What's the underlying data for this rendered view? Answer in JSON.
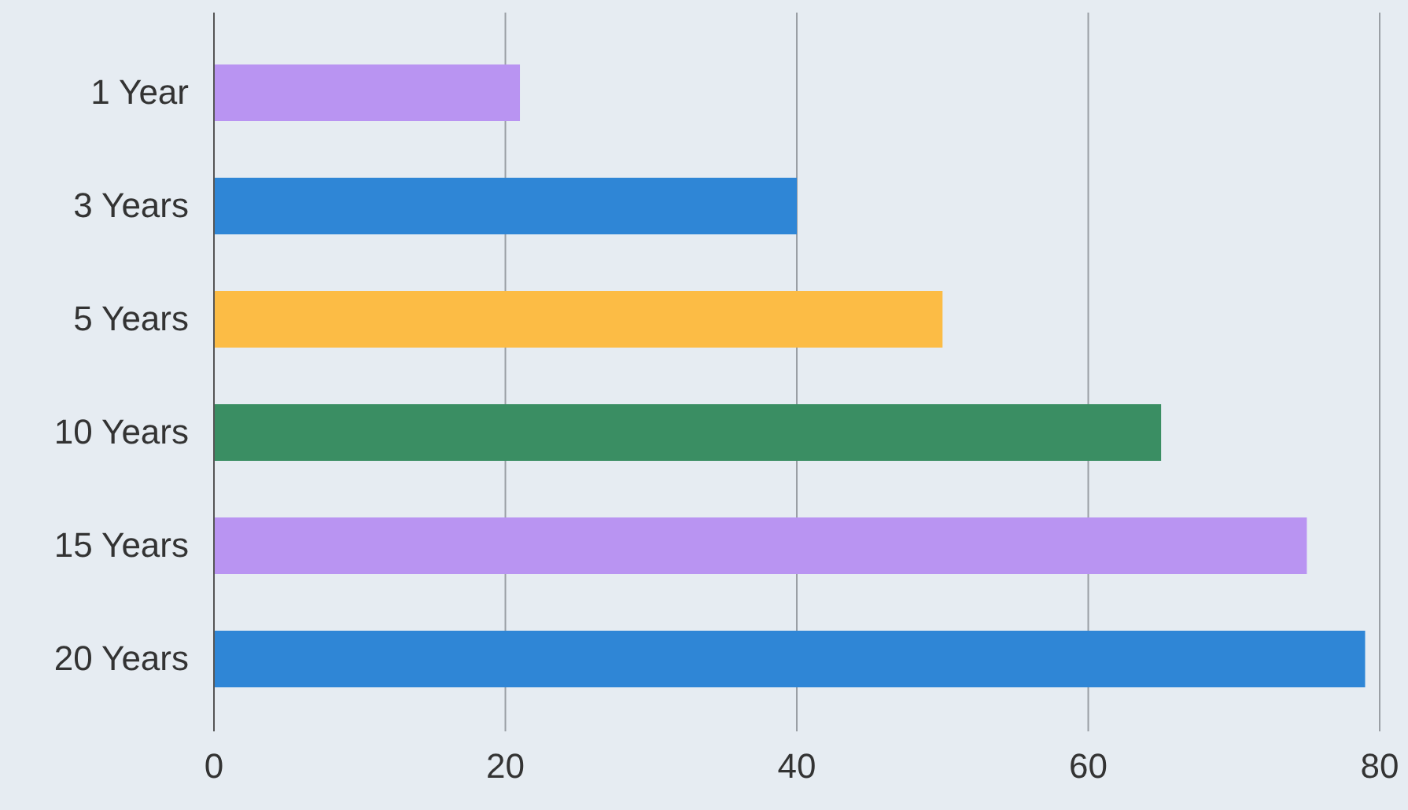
{
  "chart_data": {
    "type": "bar",
    "orientation": "horizontal",
    "categories": [
      "1 Year",
      "3 Years",
      "5 Years",
      "10 Years",
      "15 Years",
      "20 Years"
    ],
    "values": [
      21,
      40,
      50,
      65,
      75,
      79
    ],
    "colors": [
      "#b994f2",
      "#2f86d6",
      "#fcbc45",
      "#3a8e63",
      "#b994f2",
      "#2f86d6"
    ],
    "xlim": [
      0,
      80
    ],
    "xticks": [
      0,
      20,
      40,
      60,
      80
    ],
    "grid": "x"
  }
}
